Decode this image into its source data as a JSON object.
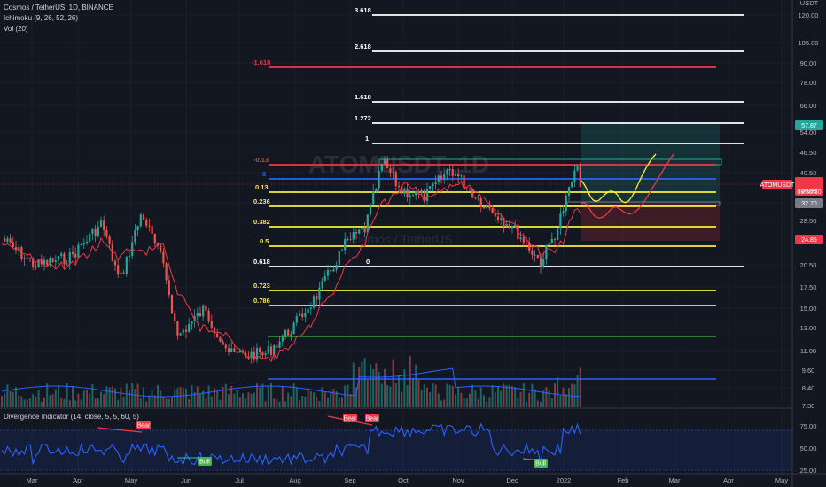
{
  "legend": {
    "symbol_line": "Cosmos / TetherUS, 1D, BINANCE",
    "ichimoku": "Ichimoku (9, 26, 52, 26)",
    "volume": "Vol (20)",
    "divergence": "Divergence Indicator (14, close, 5, 5, 60, 5)"
  },
  "watermark": {
    "line1": "ATOMUSDT, 1D",
    "line2": "Cosmos / TetherUS"
  },
  "price_axis": {
    "currency": "USDT",
    "ticks": [
      "120.00",
      "105.00",
      "90.00",
      "78.00",
      "66.00",
      "54.00",
      "46.50",
      "40.50",
      "32.70",
      "28.50",
      "20.50",
      "17.50",
      "15.00",
      "13.00",
      "11.00",
      "9.60",
      "8.40",
      "7.30"
    ]
  },
  "price_tags": {
    "target": "57.87",
    "symbol": "ATOMUSDT",
    "last_price": "36.88",
    "countdown": "08:30:30",
    "level_a": "32.70",
    "level_b": "24.85"
  },
  "rsi_axis": {
    "ticks": [
      "75.00",
      "50.00",
      "25.00"
    ]
  },
  "time_axis": {
    "labels": [
      "Mar",
      "Apr",
      "May",
      "Jun",
      "Jul",
      "Aug",
      "Sep",
      "Oct",
      "Nov",
      "Dec",
      "2022",
      "Feb",
      "Mar",
      "Apr",
      "May"
    ]
  },
  "fib_levels": [
    {
      "label": "3.618",
      "color": "#ffffff"
    },
    {
      "label": "2.618",
      "color": "#ffffff"
    },
    {
      "label": "-1.618",
      "color": "#f23645"
    },
    {
      "label": "1.618",
      "color": "#ffffff"
    },
    {
      "label": "1.272",
      "color": "#ffffff"
    },
    {
      "label": "1",
      "color": "#ffffff"
    },
    {
      "label": "-0.13",
      "color": "#f23645"
    },
    {
      "label": "0",
      "color": "#2962ff"
    },
    {
      "label": "0.13",
      "color": "#ffeb3b"
    },
    {
      "label": "0.236",
      "color": "#ffeb3b"
    },
    {
      "label": "0.382",
      "color": "#ffeb3b"
    },
    {
      "label": "0.5",
      "color": "#ffeb3b"
    },
    {
      "label": "0.618",
      "color": "#ffffff"
    },
    {
      "label": "0.723",
      "color": "#ffeb3b"
    },
    {
      "label": "0.786",
      "color": "#ffeb3b"
    }
  ],
  "fib_zero_marker": "0",
  "divergence_tags": [
    {
      "label": "Bear",
      "color": "#f23645"
    },
    {
      "label": "Bull",
      "color": "#4caf50"
    },
    {
      "label": "Bear",
      "color": "#f23645"
    },
    {
      "label": "Bear",
      "color": "#f23645"
    },
    {
      "label": "Bull",
      "color": "#4caf50"
    }
  ],
  "colors": {
    "background": "#131722",
    "up": "#26a69a",
    "down": "#ef5350",
    "ichimoku": "#f23645",
    "rsi": "#2962ff",
    "projection_a": "#ffeb3b",
    "projection_b": "#f23645"
  }
}
